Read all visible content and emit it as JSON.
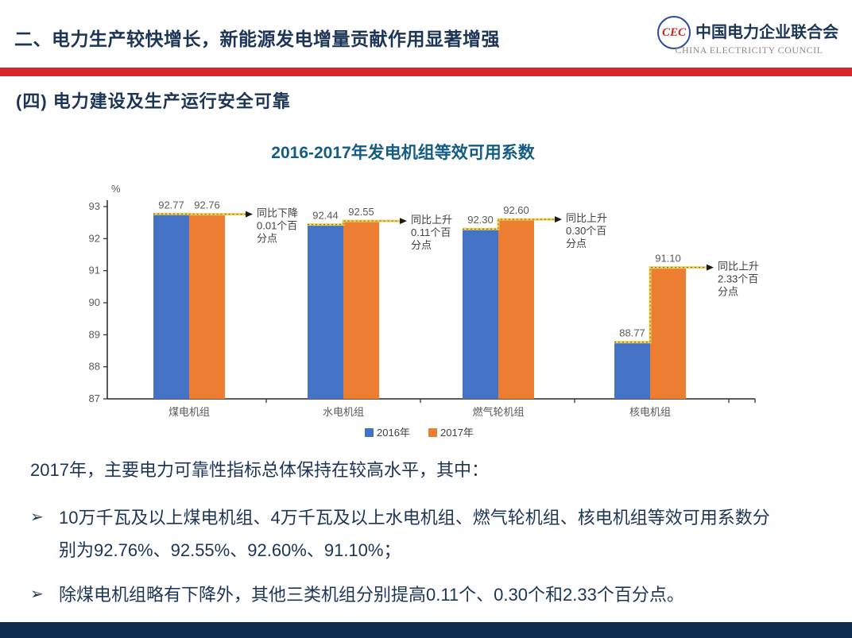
{
  "header": {
    "title": "二、电力生产较快增长，新能源发电增量贡献作用显著增强",
    "logo": {
      "emblem_text": "CEC",
      "name_cn": "中国电力企业联合会",
      "name_en": "CHINA ELECTRICITY COUNCIL"
    },
    "accent_color": "#D8262C"
  },
  "section": {
    "title": "(四)  电力建设及生产运行安全可靠"
  },
  "chart_data": {
    "type": "bar",
    "title": "2016-2017年发电机组等效可用系数",
    "unit_label": "%",
    "categories": [
      "煤电机组",
      "水电机组",
      "燃气轮机组",
      "核电机组"
    ],
    "series": [
      {
        "name": "2016年",
        "color": "#4472C4",
        "values": [
          92.77,
          92.44,
          92.3,
          88.77
        ]
      },
      {
        "name": "2017年",
        "color": "#ED7D31",
        "values": [
          92.76,
          92.55,
          92.6,
          91.1
        ]
      }
    ],
    "annotations": [
      "同比下降0.01个百分点",
      "同比上升0.11个百分点",
      "同比上升0.30个百分点",
      "同比上升2.33个百分点"
    ],
    "annotation_lines": [
      [
        "同比下降",
        "0.01个百",
        "分点"
      ],
      [
        "同比上升",
        "0.11个百",
        "分点"
      ],
      [
        "同比上升",
        "0.30个百",
        "分点"
      ],
      [
        "同比上升",
        "2.33个百",
        "分点"
      ]
    ],
    "ylim": [
      87,
      93
    ],
    "yticks": [
      87,
      88,
      89,
      90,
      91,
      92,
      93
    ],
    "grid": false,
    "legend_position": "bottom",
    "connector_color": "#EFD058",
    "text_color": "#595959",
    "annotation_text_color": "#404040"
  },
  "body": {
    "intro": "2017年，主要电力可靠性指标总体保持在较高水平，其中：",
    "bullet_marker": "➢",
    "bullets": [
      "10万千瓦及以上煤电机组、4万千瓦及以上水电机组、燃气轮机组、核电机组等效可用系数分别为92.76%、92.55%、92.60%、91.10%；",
      "除煤电机组略有下降外，其他三类机组分别提高0.11个、0.30个和2.33个百分点。"
    ]
  }
}
